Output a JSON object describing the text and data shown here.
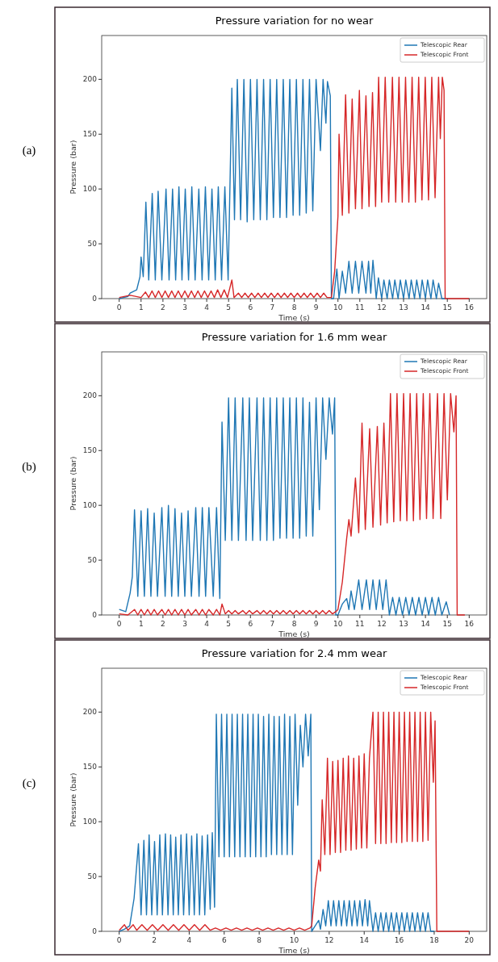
{
  "chart_data": [
    {
      "type": "line",
      "title": "Pressure variation for no wear",
      "xlabel": "Time (s)",
      "ylabel": "Pressure (bar)",
      "annotations": [
        "(a)"
      ],
      "xlim": [
        -0.8,
        16.8
      ],
      "ylim": [
        0,
        240
      ],
      "xticks": [
        0,
        1,
        2,
        3,
        4,
        5,
        6,
        7,
        8,
        9,
        10,
        11,
        12,
        13,
        14,
        15,
        16
      ],
      "yticks": [
        0,
        50,
        100,
        150,
        200
      ],
      "legend": "top right",
      "series": [
        {
          "name": "Telescopic Rear",
          "color": "#1f77b4",
          "x": [
            0,
            0.4,
            0.5,
            0.8,
            0.95,
            1.0,
            1.1,
            1.22,
            1.35,
            1.51,
            1.65,
            1.78,
            1.95,
            2.14,
            2.28,
            2.44,
            2.58,
            2.73,
            2.87,
            3.02,
            3.17,
            3.32,
            3.47,
            3.64,
            3.79,
            3.94,
            4.09,
            4.24,
            4.39,
            4.53,
            4.68,
            4.83,
            4.98,
            5.15,
            5.27,
            5.4,
            5.55,
            5.7,
            5.85,
            6.0,
            6.15,
            6.3,
            6.45,
            6.6,
            6.75,
            6.9,
            7.05,
            7.2,
            7.35,
            7.5,
            7.65,
            7.8,
            7.95,
            8.1,
            8.25,
            8.4,
            8.55,
            8.7,
            8.85,
            9.0,
            9.2,
            9.32,
            9.45,
            9.52,
            9.65,
            9.7,
            9.8,
            9.95,
            10.05,
            10.2,
            10.35,
            10.5,
            10.65,
            10.8,
            10.95,
            11.1,
            11.28,
            11.4,
            11.5,
            11.6,
            11.75,
            11.85,
            12.0,
            12.1,
            12.25,
            12.35,
            12.5,
            12.6,
            12.75,
            12.85,
            13.0,
            13.1,
            13.25,
            13.35,
            13.5,
            13.6,
            13.75,
            13.85,
            14.0,
            14.1,
            14.25,
            14.35,
            14.5,
            14.6,
            14.75,
            14.9
          ],
          "values": [
            0,
            2,
            5,
            8,
            20,
            38,
            20,
            88,
            17,
            96,
            17,
            98,
            17,
            100,
            17,
            100,
            17,
            102,
            17,
            100,
            17,
            102,
            17,
            100,
            17,
            102,
            17,
            100,
            17,
            102,
            17,
            102,
            17,
            192,
            72,
            200,
            72,
            200,
            70,
            200,
            72,
            200,
            72,
            200,
            72,
            200,
            74,
            200,
            74,
            200,
            74,
            200,
            76,
            200,
            76,
            200,
            78,
            200,
            80,
            200,
            135,
            200,
            160,
            198,
            185,
            0,
            0,
            27,
            0,
            25,
            5,
            34,
            5,
            34,
            5,
            34,
            5,
            34,
            5,
            35,
            0,
            19,
            0,
            17,
            0,
            17,
            0,
            17,
            0,
            17,
            0,
            17,
            0,
            17,
            0,
            17,
            0,
            17,
            0,
            17,
            0,
            17,
            0,
            14,
            0,
            0
          ]
        },
        {
          "name": "Telescopic Front",
          "color": "#d62728",
          "x": [
            0,
            0.5,
            1.0,
            1.2,
            1.35,
            1.5,
            1.65,
            1.8,
            1.95,
            2.1,
            2.25,
            2.4,
            2.55,
            2.7,
            2.85,
            3.0,
            3.15,
            3.3,
            3.45,
            3.6,
            3.75,
            3.9,
            4.05,
            4.2,
            4.35,
            4.5,
            4.65,
            4.8,
            4.95,
            5.15,
            5.25,
            5.45,
            5.6,
            5.75,
            5.9,
            6.05,
            6.2,
            6.35,
            6.5,
            6.65,
            6.8,
            6.95,
            7.1,
            7.25,
            7.4,
            7.55,
            7.7,
            7.85,
            8.0,
            8.15,
            8.3,
            8.45,
            8.6,
            8.75,
            8.9,
            9.05,
            9.2,
            9.35,
            9.5,
            9.7,
            9.85,
            10.0,
            10.05,
            10.2,
            10.35,
            10.5,
            10.65,
            10.8,
            10.98,
            11.1,
            11.28,
            11.42,
            11.58,
            11.72,
            11.86,
            12.0,
            12.16,
            12.32,
            12.49,
            12.64,
            12.79,
            12.94,
            13.09,
            13.24,
            13.39,
            13.54,
            13.69,
            13.84,
            13.99,
            14.14,
            14.29,
            14.44,
            14.6,
            14.68,
            14.77,
            14.85,
            14.9,
            16
          ],
          "values": [
            1,
            3,
            1,
            6,
            1,
            7,
            1,
            7,
            1,
            7,
            1,
            7,
            1,
            7,
            1,
            7,
            1,
            7,
            1,
            7,
            1,
            7,
            1,
            7,
            1,
            8,
            1,
            8,
            1,
            17,
            1,
            5,
            1,
            5,
            1,
            5,
            1,
            5,
            1,
            5,
            1,
            5,
            1,
            5,
            1,
            5,
            1,
            5,
            1,
            5,
            1,
            5,
            1,
            5,
            1,
            5,
            1,
            5,
            1,
            1,
            25,
            75,
            150,
            76,
            186,
            78,
            182,
            82,
            190,
            82,
            185,
            84,
            188,
            84,
            202,
            88,
            202,
            88,
            202,
            88,
            202,
            88,
            202,
            88,
            202,
            88,
            202,
            90,
            202,
            90,
            202,
            92,
            202,
            146,
            202,
            190,
            0,
            0
          ]
        }
      ]
    },
    {
      "type": "line",
      "title": "Pressure variation for 1.6 mm wear",
      "xlabel": "Time (s)",
      "ylabel": "Pressure (bar)",
      "annotations": [
        "(b)"
      ],
      "xlim": [
        -0.8,
        16.8
      ],
      "ylim": [
        0,
        240
      ],
      "xticks": [
        0,
        1,
        2,
        3,
        4,
        5,
        6,
        7,
        8,
        9,
        10,
        11,
        12,
        13,
        14,
        15,
        16
      ],
      "yticks": [
        0,
        50,
        100,
        150,
        200
      ],
      "legend": "top right",
      "series": [
        {
          "name": "Telescopic Rear",
          "color": "#1f77b4",
          "x": [
            0,
            0.3,
            0.5,
            0.6,
            0.7,
            0.85,
            1.0,
            1.15,
            1.3,
            1.45,
            1.6,
            1.75,
            1.95,
            2.1,
            2.25,
            2.4,
            2.55,
            2.7,
            2.85,
            3.0,
            3.15,
            3.3,
            3.5,
            3.65,
            3.8,
            3.95,
            4.1,
            4.3,
            4.45,
            4.6,
            4.7,
            4.85,
            5.0,
            5.15,
            5.3,
            5.45,
            5.65,
            5.8,
            5.95,
            6.1,
            6.3,
            6.45,
            6.6,
            6.75,
            6.9,
            7.05,
            7.2,
            7.35,
            7.5,
            7.65,
            7.8,
            7.95,
            8.1,
            8.25,
            8.4,
            8.55,
            8.7,
            8.85,
            9.0,
            9.15,
            9.3,
            9.45,
            9.6,
            9.75,
            9.85,
            9.9,
            10.0,
            10.2,
            10.4,
            10.5,
            10.6,
            10.75,
            10.95,
            11.1,
            11.3,
            11.45,
            11.6,
            11.75,
            11.9,
            12.05,
            12.2,
            12.35,
            12.5,
            12.65,
            12.8,
            12.95,
            13.1,
            13.25,
            13.4,
            13.55,
            13.7,
            13.85,
            14.0,
            14.15,
            14.3,
            14.45,
            14.6,
            14.75,
            14.95,
            15.1
          ],
          "values": [
            5,
            3,
            20,
            35,
            96,
            17,
            95,
            17,
            97,
            17,
            93,
            17,
            98,
            17,
            100,
            17,
            97,
            17,
            93,
            17,
            95,
            17,
            98,
            17,
            98,
            17,
            98,
            17,
            98,
            15,
            176,
            68,
            198,
            68,
            198,
            68,
            198,
            68,
            198,
            68,
            198,
            68,
            198,
            68,
            198,
            68,
            198,
            70,
            198,
            70,
            198,
            70,
            198,
            70,
            198,
            72,
            194,
            72,
            198,
            96,
            198,
            142,
            198,
            165,
            198,
            0,
            0,
            10,
            15,
            5,
            22,
            5,
            32,
            5,
            32,
            5,
            32,
            5,
            32,
            5,
            32,
            0,
            16,
            0,
            16,
            0,
            16,
            0,
            16,
            0,
            16,
            0,
            16,
            0,
            16,
            0,
            16,
            0,
            12,
            0
          ]
        },
        {
          "name": "Telescopic Front",
          "color": "#d62728",
          "x": [
            0,
            0.4,
            0.7,
            0.85,
            1.0,
            1.15,
            1.3,
            1.45,
            1.6,
            1.75,
            1.95,
            2.1,
            2.25,
            2.4,
            2.55,
            2.7,
            2.85,
            3.0,
            3.15,
            3.3,
            3.5,
            3.65,
            3.8,
            3.95,
            4.1,
            4.3,
            4.45,
            4.6,
            4.7,
            4.85,
            5.0,
            5.15,
            5.3,
            5.45,
            5.65,
            5.8,
            5.95,
            6.1,
            6.3,
            6.45,
            6.6,
            6.75,
            6.9,
            7.05,
            7.2,
            7.35,
            7.5,
            7.65,
            7.8,
            7.95,
            8.1,
            8.25,
            8.4,
            8.55,
            8.7,
            8.85,
            9.0,
            9.15,
            9.3,
            9.45,
            9.6,
            9.75,
            9.9,
            10.0,
            10.2,
            10.4,
            10.5,
            10.6,
            10.8,
            10.95,
            11.1,
            11.25,
            11.45,
            11.6,
            11.8,
            11.95,
            12.1,
            12.25,
            12.4,
            12.55,
            12.7,
            12.85,
            13.0,
            13.15,
            13.3,
            13.45,
            13.6,
            13.75,
            13.9,
            14.05,
            14.2,
            14.35,
            14.55,
            14.7,
            14.85,
            15.0,
            15.15,
            15.3,
            15.4,
            15.45,
            15.8
          ],
          "values": [
            1,
            0,
            5,
            0,
            5,
            0,
            5,
            0,
            5,
            0,
            5,
            0,
            5,
            0,
            5,
            0,
            5,
            0,
            5,
            0,
            5,
            0,
            5,
            0,
            5,
            0,
            5,
            0,
            10,
            1,
            4,
            1,
            4,
            1,
            4,
            1,
            4,
            1,
            4,
            1,
            4,
            1,
            4,
            1,
            4,
            1,
            4,
            1,
            4,
            1,
            4,
            1,
            4,
            1,
            4,
            1,
            4,
            1,
            4,
            1,
            4,
            1,
            3,
            5,
            30,
            70,
            87,
            72,
            125,
            75,
            175,
            78,
            170,
            80,
            172,
            82,
            175,
            84,
            202,
            85,
            202,
            86,
            202,
            86,
            202,
            86,
            202,
            87,
            202,
            88,
            202,
            88,
            202,
            88,
            202,
            105,
            202,
            167,
            200,
            0,
            0
          ]
        }
      ]
    },
    {
      "type": "line",
      "title": "Pressure variation for 2.4 mm wear",
      "xlabel": "Time (s)",
      "ylabel": "Pressure (bar)",
      "annotations": [
        "(c)"
      ],
      "xlim": [
        -1,
        21
      ],
      "ylim": [
        0,
        240
      ],
      "xticks": [
        0,
        2,
        4,
        6,
        8,
        10,
        12,
        14,
        16,
        18,
        20
      ],
      "yticks": [
        0,
        50,
        100,
        150,
        200
      ],
      "legend": "top right",
      "series": [
        {
          "name": "Telescopic Rear",
          "color": "#1f77b4",
          "x": [
            0,
            0.3,
            0.6,
            0.85,
            1.1,
            1.25,
            1.41,
            1.56,
            1.71,
            1.86,
            2.02,
            2.17,
            2.32,
            2.47,
            2.64,
            2.79,
            2.94,
            3.09,
            3.23,
            3.38,
            3.53,
            3.68,
            3.85,
            4.0,
            4.14,
            4.29,
            4.44,
            4.59,
            4.74,
            4.89,
            5.05,
            5.2,
            5.32,
            5.45,
            5.55,
            5.7,
            5.85,
            6.0,
            6.15,
            6.3,
            6.45,
            6.6,
            6.75,
            6.9,
            7.05,
            7.2,
            7.35,
            7.5,
            7.65,
            7.8,
            7.95,
            8.1,
            8.25,
            8.4,
            8.55,
            8.7,
            8.85,
            9.0,
            9.15,
            9.3,
            9.45,
            9.6,
            9.75,
            9.9,
            10.05,
            10.2,
            10.35,
            10.5,
            10.65,
            10.8,
            10.95,
            11.0,
            11.2,
            11.4,
            11.5,
            11.65,
            11.8,
            11.95,
            12.1,
            12.25,
            12.4,
            12.55,
            12.7,
            12.85,
            13.0,
            13.15,
            13.3,
            13.45,
            13.6,
            13.75,
            13.9,
            14.05,
            14.2,
            14.3,
            14.5,
            14.65,
            14.8,
            14.95,
            15.1,
            15.25,
            15.4,
            15.55,
            15.7,
            15.85,
            16.0,
            16.15,
            16.3,
            16.45,
            16.6,
            16.75,
            16.9,
            17.05,
            17.2,
            17.35,
            17.5,
            17.65,
            17.8,
            18.0
          ],
          "values": [
            0,
            2,
            5,
            30,
            80,
            15,
            83,
            15,
            88,
            15,
            82,
            15,
            88,
            15,
            89,
            15,
            88,
            15,
            86,
            15,
            88,
            15,
            89,
            15,
            87,
            15,
            89,
            15,
            87,
            15,
            88,
            20,
            90,
            22,
            198,
            68,
            198,
            68,
            198,
            68,
            198,
            68,
            198,
            68,
            198,
            68,
            198,
            68,
            198,
            68,
            198,
            68,
            196,
            68,
            198,
            70,
            196,
            70,
            196,
            70,
            198,
            70,
            196,
            70,
            198,
            115,
            188,
            150,
            198,
            160,
            198,
            0,
            5,
            10,
            2,
            20,
            5,
            28,
            5,
            28,
            5,
            28,
            5,
            28,
            5,
            28,
            5,
            28,
            5,
            28,
            5,
            29,
            5,
            28,
            0,
            17,
            0,
            17,
            0,
            17,
            0,
            17,
            0,
            17,
            0,
            17,
            0,
            17,
            0,
            17,
            0,
            17,
            0,
            17,
            0,
            17,
            0,
            0
          ]
        },
        {
          "name": "Telescopic Front",
          "color": "#d62728",
          "x": [
            0,
            0.3,
            0.5,
            0.8,
            1.0,
            1.3,
            1.6,
            1.9,
            2.2,
            2.5,
            2.8,
            3.1,
            3.4,
            3.7,
            4.0,
            4.3,
            4.6,
            4.9,
            5.2,
            5.5,
            5.8,
            6.1,
            6.4,
            6.7,
            7.0,
            7.3,
            7.6,
            7.9,
            8.2,
            8.5,
            8.8,
            9.1,
            9.4,
            9.7,
            10.0,
            10.3,
            10.6,
            10.9,
            11.0,
            11.2,
            11.4,
            11.5,
            11.6,
            11.75,
            11.9,
            12.05,
            12.2,
            12.35,
            12.5,
            12.65,
            12.8,
            12.95,
            13.1,
            13.25,
            13.4,
            13.55,
            13.7,
            13.85,
            14.0,
            14.15,
            14.3,
            14.5,
            14.65,
            14.8,
            14.95,
            15.1,
            15.25,
            15.4,
            15.55,
            15.7,
            15.85,
            16.0,
            16.15,
            16.3,
            16.45,
            16.6,
            16.75,
            16.9,
            17.05,
            17.2,
            17.35,
            17.5,
            17.65,
            17.8,
            17.95,
            18.05,
            18.15,
            20
          ],
          "values": [
            1,
            6,
            1,
            6,
            1,
            6,
            1,
            6,
            1,
            6,
            1,
            6,
            1,
            6,
            1,
            6,
            1,
            6,
            1,
            3,
            1,
            3,
            1,
            3,
            1,
            3,
            1,
            3,
            1,
            3,
            1,
            3,
            1,
            3,
            1,
            3,
            1,
            3,
            5,
            40,
            65,
            55,
            120,
            70,
            158,
            70,
            155,
            72,
            156,
            72,
            158,
            74,
            160,
            74,
            158,
            75,
            160,
            76,
            162,
            76,
            158,
            200,
            80,
            200,
            80,
            200,
            80,
            200,
            81,
            200,
            81,
            200,
            81,
            200,
            82,
            200,
            82,
            200,
            82,
            200,
            82,
            200,
            83,
            200,
            136,
            192,
            0,
            0
          ]
        }
      ]
    }
  ]
}
